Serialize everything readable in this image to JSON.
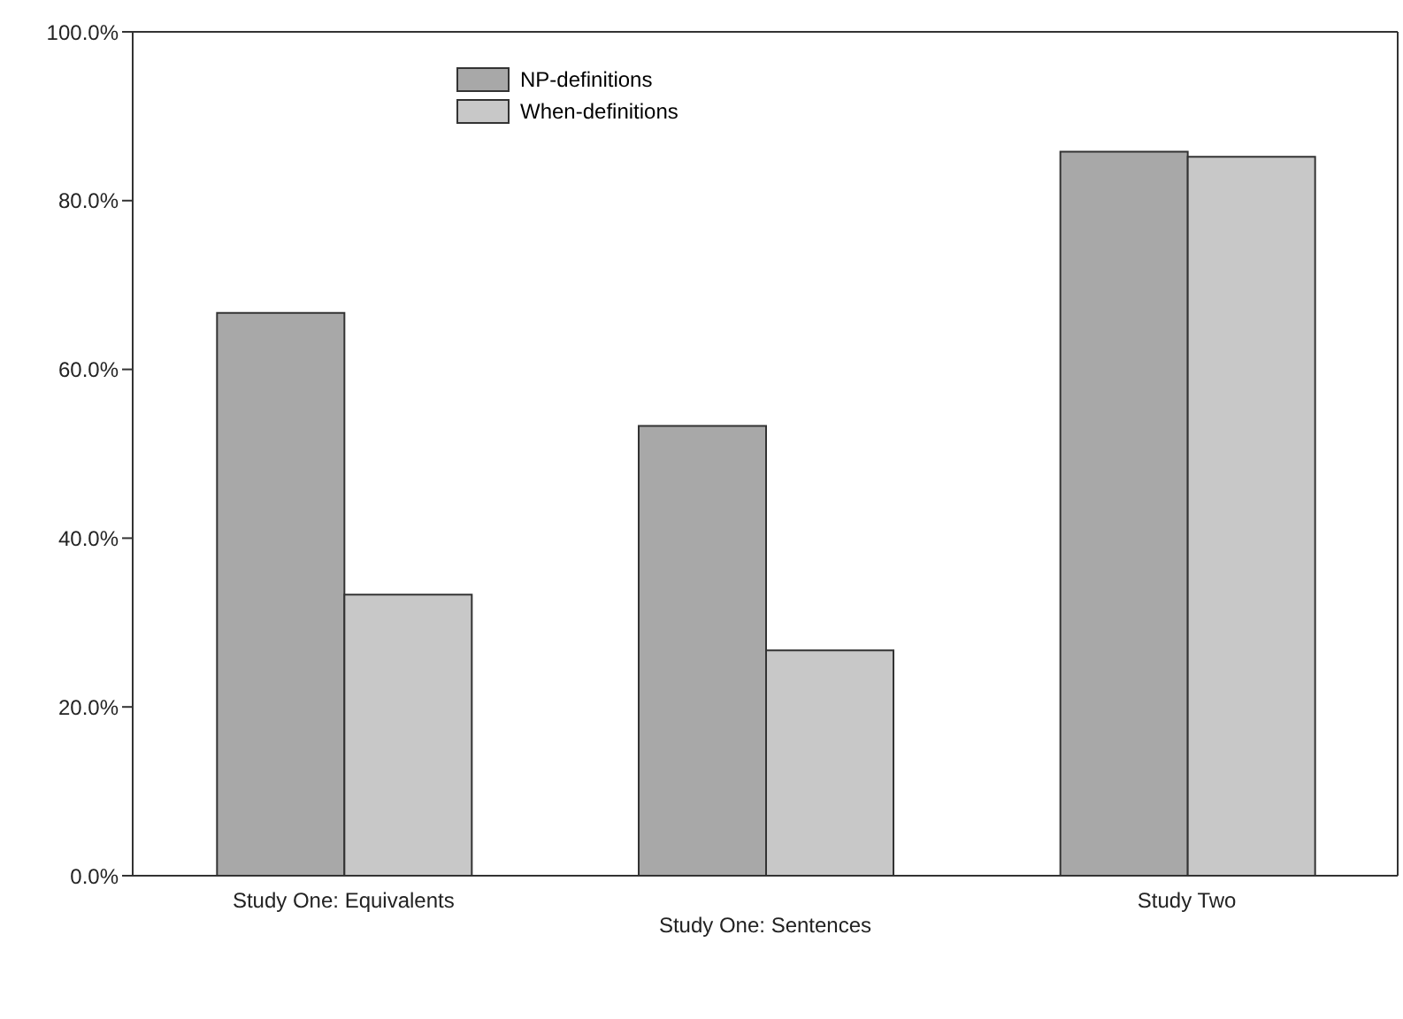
{
  "chart_data": {
    "type": "bar",
    "categories": [
      "Study One: Equivalents",
      "Study One: Sentences",
      "Study Two"
    ],
    "series": [
      {
        "name": "NP-definitions",
        "color": "#a8a8a8",
        "values": [
          66.7,
          53.3,
          85.8
        ]
      },
      {
        "name": "When-definitions",
        "color": "#c8c8c8",
        "values": [
          33.3,
          26.7,
          85.2
        ]
      }
    ],
    "ylim": [
      0,
      100
    ],
    "yticks": [
      {
        "value": 0,
        "label": "0.0%"
      },
      {
        "value": 20,
        "label": "20.0%"
      },
      {
        "value": 40,
        "label": "40.0%"
      },
      {
        "value": 60,
        "label": "60.0%"
      },
      {
        "value": 80,
        "label": "80.0%"
      },
      {
        "value": 100,
        "label": "100.0%"
      }
    ],
    "grid": false,
    "legend": "top"
  }
}
